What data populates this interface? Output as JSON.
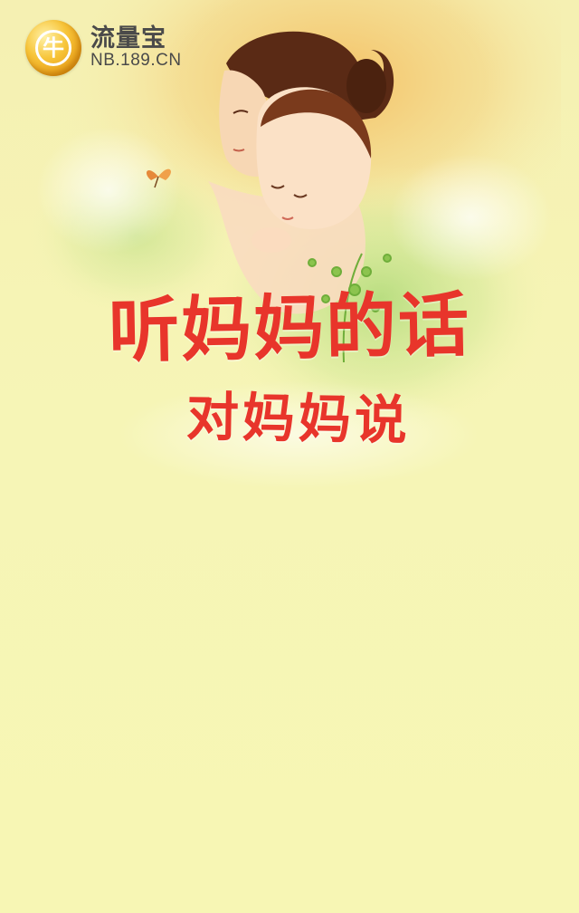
{
  "brand": {
    "name": "流量宝",
    "url": "NB.189.CN",
    "coin_glyph": "牛",
    "coin_icon": "coin-logo-icon"
  },
  "hero": {
    "title_line_1": "听妈妈的话",
    "title_line_2": "对妈妈说",
    "illustration": "mother-and-baby-illustration"
  },
  "colors": {
    "background": "#f6f5b3",
    "title": "#e8352b",
    "logo_text": "#4a4a4a",
    "coin_gold": "#f7c53a"
  }
}
